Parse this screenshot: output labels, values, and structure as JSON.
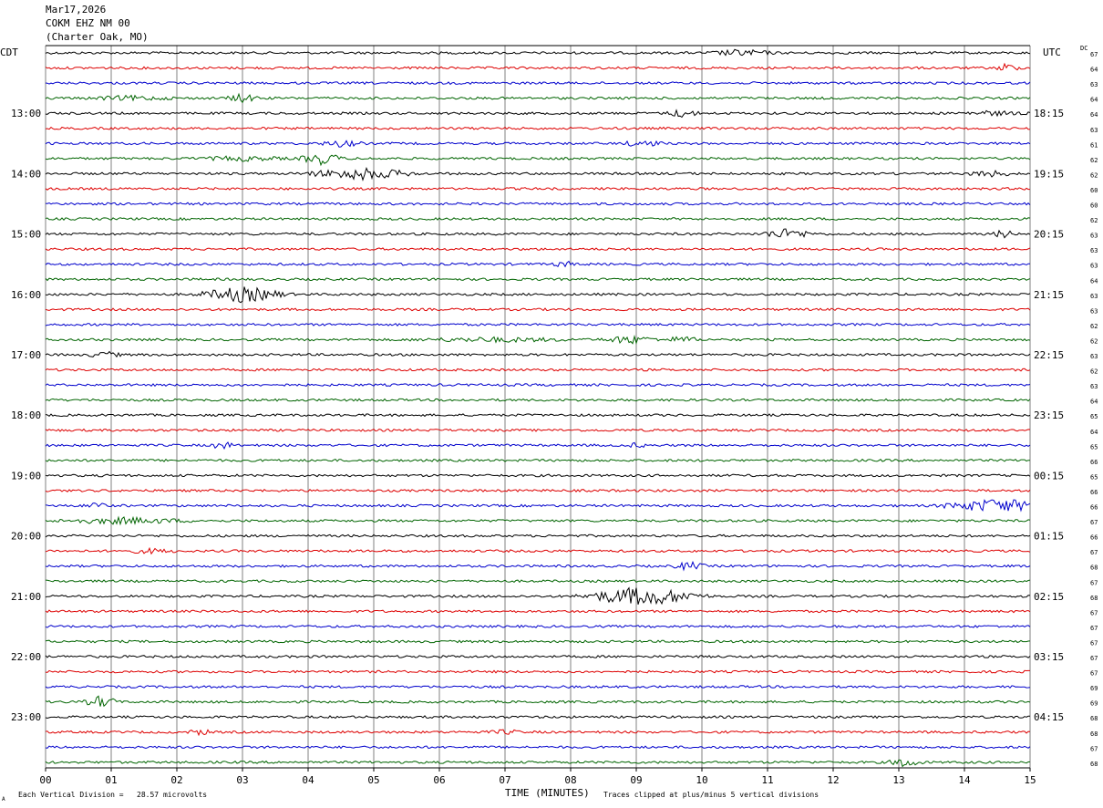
{
  "header": {
    "date": "Mar17,2026",
    "station": "COKM EHZ NM 00",
    "location": "(Charter Oak, MO)"
  },
  "left_tz": "CDT",
  "right_tz": "UTC",
  "dc_label": "DC",
  "footer": {
    "scale": "Each Vertical Division =   28.57 microvolts",
    "xlabel": "TIME (MINUTES)",
    "clip_note": "Traces clipped at plus/minus 5 vertical divisions",
    "corner_mark": "A"
  },
  "colors": {
    "black": "#000000",
    "red": "#dd0000",
    "blue": "#0000cc",
    "green": "#006400",
    "grid": "#808080"
  },
  "chart_data": {
    "type": "line",
    "title": "COKM EHZ NM 00",
    "xlabel": "TIME (MINUTES)",
    "xlim": [
      0,
      15
    ],
    "x_ticks": [
      "00",
      "01",
      "02",
      "03",
      "04",
      "05",
      "06",
      "07",
      "08",
      "09",
      "10",
      "11",
      "12",
      "13",
      "14",
      "15"
    ],
    "trace_colors_cycle": [
      "black",
      "red",
      "blue",
      "green"
    ],
    "trace_count": 48,
    "trace_minutes": 15,
    "left_hour_labels": [
      "13:00",
      "14:00",
      "15:00",
      "16:00",
      "17:00",
      "18:00",
      "19:00",
      "20:00",
      "21:00",
      "22:00",
      "23:00"
    ],
    "left_label_trace_index": [
      4,
      8,
      12,
      16,
      20,
      24,
      28,
      32,
      36,
      40,
      44
    ],
    "right_hour_labels": [
      "18:15",
      "19:15",
      "20:15",
      "21:15",
      "22:15",
      "23:15",
      "00:15",
      "01:15",
      "02:15",
      "03:15",
      "04:15"
    ],
    "right_label_trace_index": [
      4,
      8,
      12,
      16,
      20,
      24,
      28,
      32,
      36,
      40,
      44
    ],
    "dc_offsets": [
      67,
      64,
      63,
      64,
      64,
      63,
      61,
      62,
      62,
      60,
      60,
      62,
      63,
      63,
      63,
      64,
      63,
      63,
      62,
      62,
      63,
      62,
      63,
      64,
      65,
      64,
      65,
      66,
      65,
      66,
      66,
      67,
      66,
      67,
      68,
      67,
      68,
      67,
      67,
      67,
      67,
      67,
      69,
      69,
      68,
      68,
      67,
      68
    ],
    "events": [
      {
        "trace": 0,
        "minute": 10.6,
        "amp": 3,
        "dur": 0.6
      },
      {
        "trace": 1,
        "minute": 14.65,
        "amp": 5,
        "dur": 0.2
      },
      {
        "trace": 3,
        "minute": 3.0,
        "amp": 4,
        "dur": 0.3
      },
      {
        "trace": 3,
        "minute": 1.3,
        "amp": 2,
        "dur": 0.8
      },
      {
        "trace": 4,
        "minute": 9.7,
        "amp": 4,
        "dur": 0.3
      },
      {
        "trace": 4,
        "minute": 14.4,
        "amp": 2,
        "dur": 0.6
      },
      {
        "trace": 6,
        "minute": 4.5,
        "amp": 3,
        "dur": 0.4
      },
      {
        "trace": 6,
        "minute": 9.1,
        "amp": 3,
        "dur": 0.4
      },
      {
        "trace": 7,
        "minute": 4.2,
        "amp": 6,
        "dur": 0.4
      },
      {
        "trace": 7,
        "minute": 3.0,
        "amp": 2,
        "dur": 0.8
      },
      {
        "trace": 8,
        "minute": 4.8,
        "amp": 6,
        "dur": 1.0
      },
      {
        "trace": 8,
        "minute": 14.4,
        "amp": 3,
        "dur": 0.4
      },
      {
        "trace": 12,
        "minute": 11.3,
        "amp": 5,
        "dur": 0.5
      },
      {
        "trace": 12,
        "minute": 14.6,
        "amp": 4,
        "dur": 0.2
      },
      {
        "trace": 14,
        "minute": 7.9,
        "amp": 3,
        "dur": 0.2
      },
      {
        "trace": 16,
        "minute": 3.0,
        "amp": 8,
        "dur": 0.8
      },
      {
        "trace": 19,
        "minute": 8.9,
        "amp": 4,
        "dur": 0.5
      },
      {
        "trace": 19,
        "minute": 6.8,
        "amp": 2,
        "dur": 1.5
      },
      {
        "trace": 19,
        "minute": 9.7,
        "amp": 3,
        "dur": 0.3
      },
      {
        "trace": 20,
        "minute": 0.9,
        "amp": 3,
        "dur": 0.3
      },
      {
        "trace": 26,
        "minute": 2.7,
        "amp": 4,
        "dur": 0.2
      },
      {
        "trace": 26,
        "minute": 9.0,
        "amp": 2,
        "dur": 0.2
      },
      {
        "trace": 30,
        "minute": 0.75,
        "amp": 4,
        "dur": 0.2
      },
      {
        "trace": 30,
        "minute": 14.5,
        "amp": 7,
        "dur": 1.0
      },
      {
        "trace": 31,
        "minute": 1.2,
        "amp": 3,
        "dur": 1.2
      },
      {
        "trace": 33,
        "minute": 1.6,
        "amp": 2,
        "dur": 0.5
      },
      {
        "trace": 34,
        "minute": 9.8,
        "amp": 4,
        "dur": 0.3
      },
      {
        "trace": 36,
        "minute": 9.1,
        "amp": 10,
        "dur": 1.1
      },
      {
        "trace": 43,
        "minute": 0.85,
        "amp": 6,
        "dur": 0.3
      },
      {
        "trace": 45,
        "minute": 2.35,
        "amp": 3,
        "dur": 0.2
      },
      {
        "trace": 45,
        "minute": 7.0,
        "amp": 2,
        "dur": 0.3
      },
      {
        "trace": 47,
        "minute": 13.1,
        "amp": 5,
        "dur": 0.3
      }
    ]
  }
}
